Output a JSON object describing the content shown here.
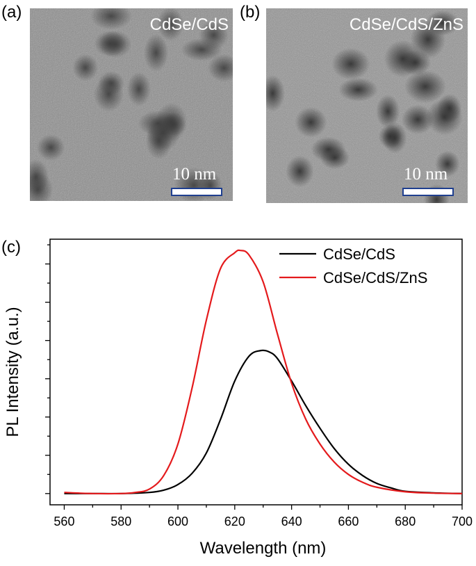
{
  "panels": [
    {
      "label": "(a)",
      "title": "CdSe/CdS",
      "scale_label": "10 nm"
    },
    {
      "label": "(b)",
      "title": "CdSe/CdS/ZnS",
      "scale_label": "10 nm"
    }
  ],
  "chart_label": "(c)",
  "colors": {
    "series1": "#000000",
    "series2": "#e41a1c"
  },
  "chart_data": {
    "type": "line",
    "title": "",
    "xlabel": "Wavelength (nm)",
    "ylabel": "PL Intensity (a.u.)",
    "xlim": [
      555,
      700
    ],
    "ylim": [
      -0.05,
      1.13
    ],
    "xticks": [
      560,
      580,
      600,
      620,
      640,
      660,
      680,
      700
    ],
    "legend_position": "top-right",
    "grid": false,
    "series": [
      {
        "name": "CdSe/CdS",
        "color": "#000000",
        "x": [
          560,
          570,
          580,
          590,
          595,
          600,
          605,
          610,
          615,
          620,
          625,
          629,
          632,
          635,
          640,
          645,
          650,
          655,
          660,
          665,
          670,
          675,
          680,
          690,
          700
        ],
        "y": [
          0.0,
          0.0,
          0.0,
          0.005,
          0.015,
          0.04,
          0.09,
          0.18,
          0.33,
          0.5,
          0.61,
          0.635,
          0.63,
          0.6,
          0.5,
          0.39,
          0.29,
          0.2,
          0.13,
          0.08,
          0.045,
          0.025,
          0.01,
          0.003,
          0.0
        ]
      },
      {
        "name": "CdSe/CdS/ZnS",
        "color": "#e41a1c",
        "x": [
          560,
          570,
          580,
          585,
          590,
          595,
          600,
          605,
          610,
          615,
          620,
          622,
          625,
          630,
          635,
          640,
          645,
          650,
          655,
          660,
          665,
          670,
          680,
          690,
          700
        ],
        "y": [
          0.005,
          0.0,
          0.0,
          0.005,
          0.02,
          0.08,
          0.22,
          0.47,
          0.77,
          1.0,
          1.07,
          1.08,
          1.06,
          0.94,
          0.71,
          0.49,
          0.33,
          0.22,
          0.14,
          0.085,
          0.05,
          0.028,
          0.008,
          0.002,
          0.0
        ]
      }
    ]
  }
}
